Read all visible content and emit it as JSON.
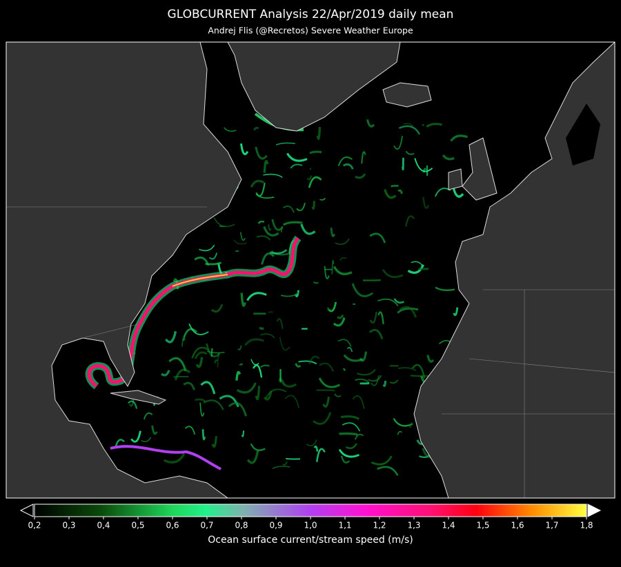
{
  "header": {
    "title": "GLOBCURRENT Analysis  22/Apr/2019  daily mean",
    "subtitle": "Andrej Flis (@Recretos)   Severe Weather Europe"
  },
  "colorbar": {
    "label": "Ocean surface current/stream speed (m/s)",
    "range": [
      0.2,
      1.8
    ],
    "ticks": [
      {
        "value": 0.2,
        "label": "0,2"
      },
      {
        "value": 0.3,
        "label": "0,3"
      },
      {
        "value": 0.4,
        "label": "0,4"
      },
      {
        "value": 0.5,
        "label": "0,5"
      },
      {
        "value": 0.6,
        "label": "0,6"
      },
      {
        "value": 0.7,
        "label": "0,7"
      },
      {
        "value": 0.8,
        "label": "0,8"
      },
      {
        "value": 0.9,
        "label": "0,9"
      },
      {
        "value": 1.0,
        "label": "1,0"
      },
      {
        "value": 1.1,
        "label": "1,1"
      },
      {
        "value": 1.2,
        "label": "1,2"
      },
      {
        "value": 1.3,
        "label": "1,3"
      },
      {
        "value": 1.4,
        "label": "1,4"
      },
      {
        "value": 1.5,
        "label": "1,5"
      },
      {
        "value": 1.6,
        "label": "1,6"
      },
      {
        "value": 1.7,
        "label": "1,7"
      },
      {
        "value": 1.8,
        "label": "1,8"
      }
    ]
  }
}
